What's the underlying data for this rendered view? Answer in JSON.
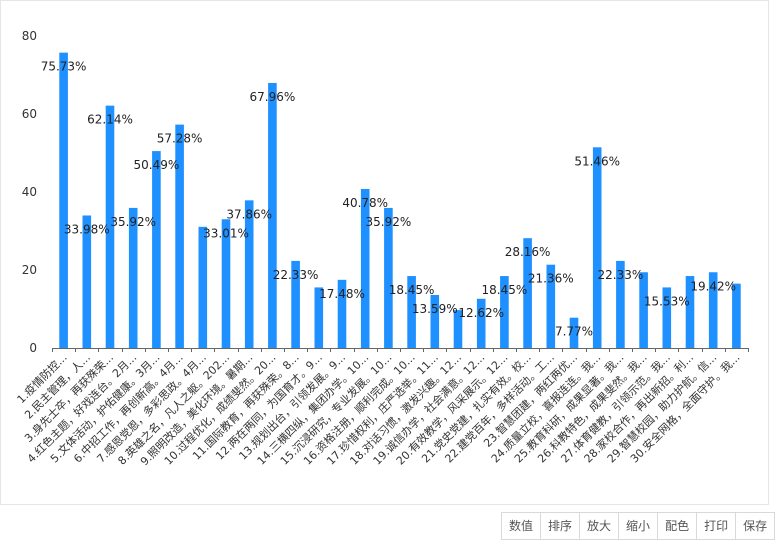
{
  "chart_data": {
    "type": "bar",
    "title": "",
    "xlabel": "",
    "ylabel": "",
    "ylim": [
      0,
      80
    ],
    "yticks": [
      0,
      20,
      40,
      60,
      80
    ],
    "grid": false,
    "legend": "none",
    "bar_color": "#1e90ff",
    "categories": [
      "1.疫情防控...",
      "2.民主管理，人...",
      "3.身先士卒，再获殊荣...",
      "4.红色主题，好戏连台。2月...",
      "5.文体活动，护佑健康。3月...",
      "6.中招工作，再创新高。4月...",
      "7.感恩党恩，多彩思政。4月...",
      "8.英雄之名，凡人之躯。202...",
      "9.照明改造，美化环境。暑期...",
      "10.过程优化，成绩斐然。20...",
      "11.国际教育，再获殊荣。8...",
      "12.两在两同，为国育才。9...",
      "13.规划出台，引领发展。9...",
      "14.三横四纵，集团办学。10...",
      "15.沉浸研究，专业发展。10...",
      "16.资格注册，顺利完成。10...",
      "17.珍惜权利，庄严选举。11...",
      "18.对话习惯，激发兴趣。12...",
      "19.诚信办学，社会满意。12...",
      "20.有效教学，风采展示。12...",
      "21.党史党建，扎实有效。校...",
      "22.建党百年，多样活动。工...",
      "23.智慧团建，两红两优...",
      "24.质量立校，喜报连连。我...",
      "25.教育科研，成果显著。我...",
      "26.科教特色，成果斐然。我...",
      "27.体育健教，引领示范。我...",
      "28.家校合作，再出新招。利...",
      "29.智慧校园，助力护航。信...",
      "30.安全网格，全面守护。我..."
    ],
    "values": [
      75.73,
      33.98,
      62.14,
      35.92,
      50.49,
      57.28,
      31.07,
      33.01,
      37.86,
      67.96,
      22.33,
      15.53,
      17.48,
      40.78,
      35.92,
      18.45,
      13.59,
      9.71,
      12.62,
      18.45,
      28.16,
      21.36,
      7.77,
      51.46,
      22.33,
      19.42,
      15.53,
      18.45,
      19.42,
      16.5
    ],
    "data_labels": {
      "0": "75.73%",
      "1": "33.98%",
      "2": "62.14%",
      "3": "35.92%",
      "4": "50.49%",
      "5": "57.28%",
      "7": "33.01%",
      "8": "37.86%",
      "9": "67.96%",
      "10": "22.33%",
      "12": "17.48%",
      "13": "40.78%",
      "14": "35.92%",
      "15": "18.45%",
      "16": "13.59%",
      "18": "12.62%",
      "19": "18.45%",
      "20": "28.16%",
      "21": "21.36%",
      "22": "7.77%",
      "23": "51.46%",
      "24": "22.33%",
      "26": "15.53%",
      "28": "19.42%"
    }
  },
  "toolbar": {
    "buttons": [
      "数值",
      "排序",
      "放大",
      "缩小",
      "配色",
      "打印",
      "保存"
    ]
  }
}
